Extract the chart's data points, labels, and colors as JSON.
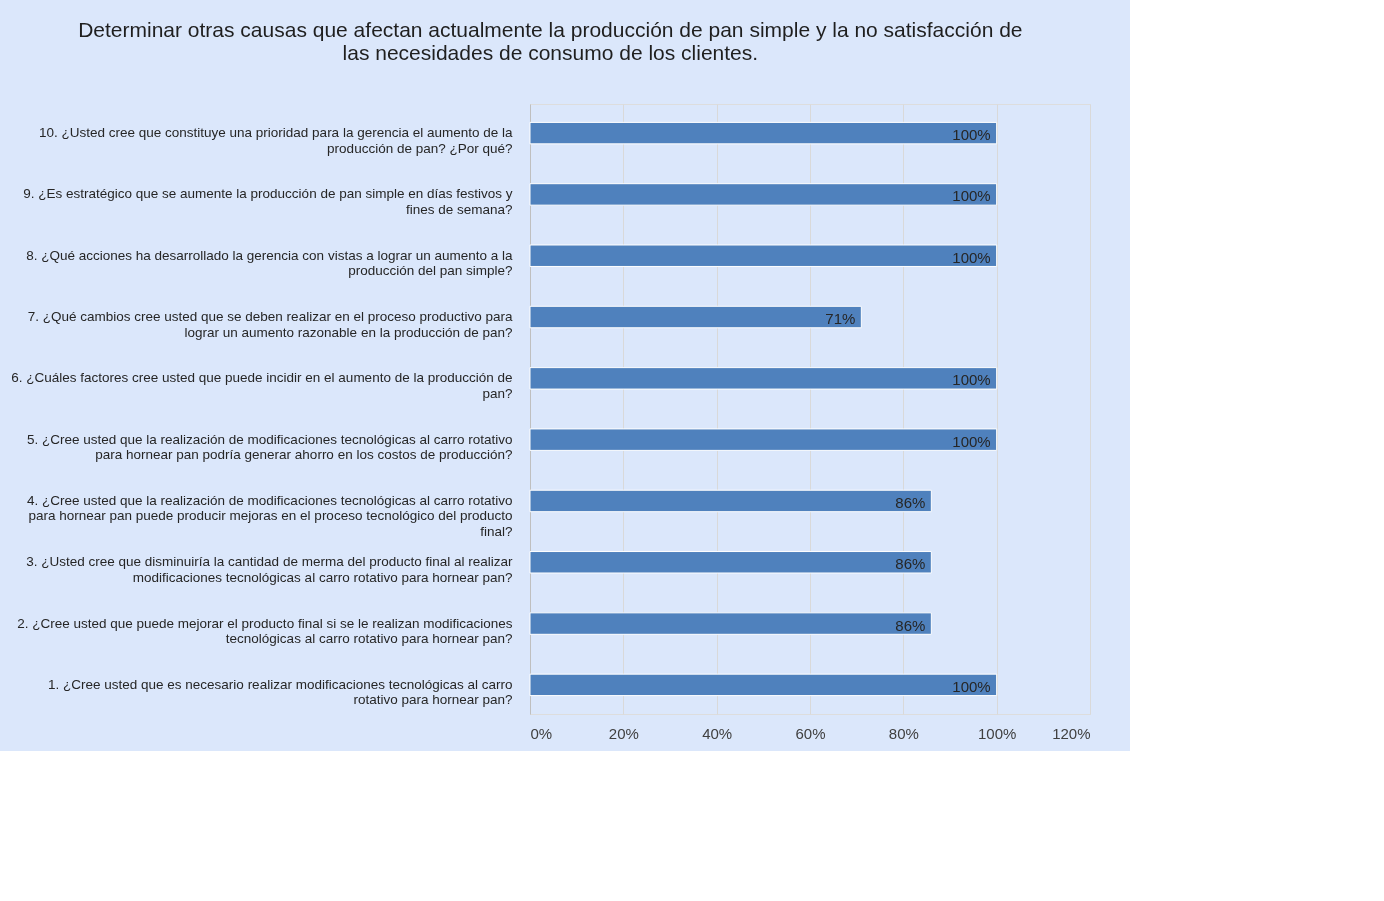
{
  "chart_data": {
    "type": "bar",
    "orientation": "horizontal",
    "title": "Determinar otras causas que afectan actualmente la producción de pan simple y la no satisfacción de las necesidades de consumo de los clientes.",
    "categories": [
      "10. ¿Usted cree que constituye una prioridad para la gerencia el aumento de la producción de pan? ¿Por qué?",
      "9. ¿Es estratégico que se aumente la producción de pan simple en días festivos y fines de semana?",
      "8. ¿Qué acciones ha desarrollado la gerencia con vistas a lograr un aumento a la producción del pan simple?",
      "7. ¿Qué cambios cree usted que se deben realizar en el proceso productivo para lograr un aumento razonable en la producción de pan?",
      "6. ¿Cuáles factores cree usted que puede incidir en el aumento de la producción de pan?",
      "5. ¿Cree usted que la realización de modificaciones tecnológicas al carro rotativo para hornear pan podría generar ahorro en los costos de producción?",
      "4. ¿Cree usted que la realización de modificaciones tecnológicas al carro rotativo para hornear pan puede producir mejoras en el proceso tecnológico del producto final?",
      "3. ¿Usted cree que disminuiría la cantidad de merma del producto final al realizar modificaciones tecnológicas al carro rotativo para hornear pan?",
      "2. ¿Cree usted que puede mejorar el producto final si se le realizan modificaciones tecnológicas al carro rotativo para hornear pan?",
      "1. ¿Cree usted que es necesario realizar modificaciones tecnológicas al carro rotativo para hornear pan?"
    ],
    "values": [
      100,
      100,
      100,
      71,
      100,
      100,
      86,
      86,
      86,
      100
    ],
    "value_labels": [
      "100%",
      "100%",
      "100%",
      "71%",
      "100%",
      "100%",
      "86%",
      "86%",
      "86%",
      "100%"
    ],
    "color": "#4f81bd",
    "xlim": [
      0,
      120
    ],
    "xticks": [
      {
        "value": 0,
        "label": "0%"
      },
      {
        "value": 20,
        "label": "20%"
      },
      {
        "value": 40,
        "label": "40%"
      },
      {
        "value": 60,
        "label": "60%"
      },
      {
        "value": 80,
        "label": "80%"
      },
      {
        "value": 100,
        "label": "100%"
      },
      {
        "value": 120,
        "label": "120%"
      }
    ],
    "grid": "x"
  }
}
